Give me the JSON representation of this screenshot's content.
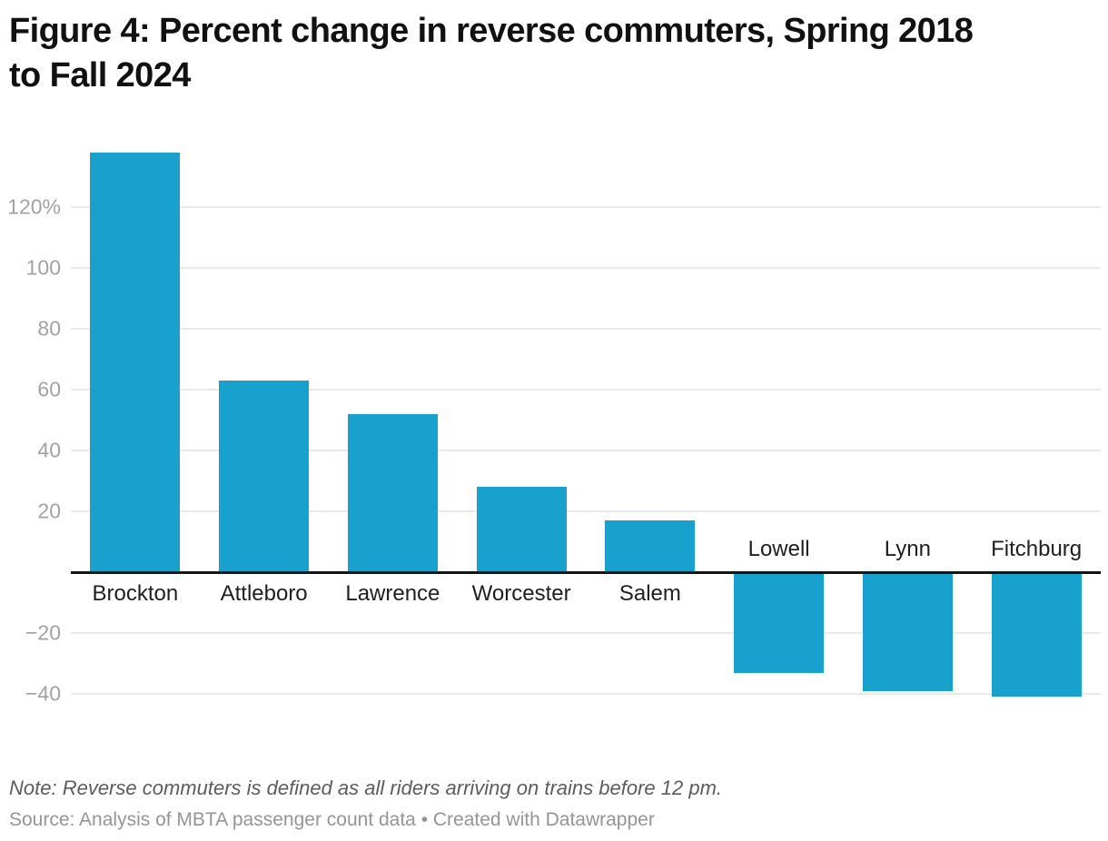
{
  "header": {
    "title_lines": [
      "Figure 4: Percent change in reverse commuters, Spring 2018",
      "to Fall 2024"
    ]
  },
  "footer": {
    "note": "Note: Reverse commuters is defined as all riders arriving on trains before 12 pm.",
    "source": "Source: Analysis of MBTA passenger count data • Created with Datawrapper"
  },
  "chart_data": {
    "type": "bar",
    "title": "Figure 4: Percent change in reverse commuters, Spring 2018 to Fall 2024",
    "categories": [
      "Brockton",
      "Attleboro",
      "Lawrence",
      "Worcester",
      "Salem",
      "Lowell",
      "Lynn",
      "Fitchburg"
    ],
    "values": [
      138,
      63,
      52,
      28,
      17,
      -33,
      -39,
      -41
    ],
    "unit": "%",
    "yticks": [
      {
        "value": 120,
        "label": "120%"
      },
      {
        "value": 100,
        "label": "100"
      },
      {
        "value": 80,
        "label": "80"
      },
      {
        "value": 60,
        "label": "60"
      },
      {
        "value": 40,
        "label": "40"
      },
      {
        "value": 20,
        "label": "20"
      },
      {
        "value": -20,
        "label": "−20"
      },
      {
        "value": -40,
        "label": "−40"
      }
    ],
    "ylim": [
      -45,
      140
    ],
    "grid": true,
    "legend": "none",
    "note": "Note: Reverse commuters is defined as all riders arriving on trains before 12 pm.",
    "source": "Source: Analysis of MBTA passenger count data • Created with Datawrapper",
    "colors": {
      "bar": "#18a1cc",
      "axis": "#151515",
      "gridline": "#e9e9e9",
      "tick_label": "#a2a2a2",
      "category_label": "#1f1f1f",
      "title": "#111111",
      "note": "#5c5c5c",
      "source": "#959595",
      "background": "#ffffff"
    }
  }
}
